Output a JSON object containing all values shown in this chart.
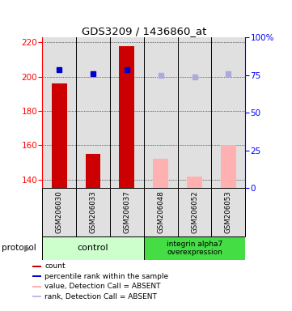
{
  "title": "GDS3209 / 1436860_at",
  "samples": [
    "GSM206030",
    "GSM206033",
    "GSM206037",
    "GSM206048",
    "GSM206052",
    "GSM206053"
  ],
  "ylim_left": [
    135,
    223
  ],
  "ylim_right": [
    0,
    100
  ],
  "yticks_left": [
    140,
    160,
    180,
    200,
    220
  ],
  "yticks_right": [
    0,
    25,
    50,
    75,
    100
  ],
  "yticklabels_right": [
    "0",
    "25",
    "50",
    "75",
    "100%"
  ],
  "bar_values": [
    196,
    155,
    218,
    152,
    142,
    160
  ],
  "bar_colors": [
    "#cc0000",
    "#cc0000",
    "#cc0000",
    "#ffb0b0",
    "#ffb0b0",
    "#ffb0b0"
  ],
  "dot_values": [
    204,
    202,
    204,
    201,
    200,
    202
  ],
  "dot_colors": [
    "#0000cc",
    "#0000cc",
    "#0000cc",
    "#aaaadd",
    "#aaaadd",
    "#aaaadd"
  ],
  "base_value": 135,
  "control_color": "#ccffcc",
  "overexpress_color": "#44dd44",
  "control_label": "control",
  "overexpress_label": "integrin alpha7\noverexpression",
  "protocol_label": "protocol",
  "legend_items": [
    {
      "color": "#cc0000",
      "label": "count"
    },
    {
      "color": "#0000cc",
      "label": "percentile rank within the sample"
    },
    {
      "color": "#ffb0b0",
      "label": "value, Detection Call = ABSENT"
    },
    {
      "color": "#bbbbee",
      "label": "rank, Detection Call = ABSENT"
    }
  ],
  "n_control": 3,
  "n_overexpress": 3,
  "bg_color": "#e0e0e0"
}
